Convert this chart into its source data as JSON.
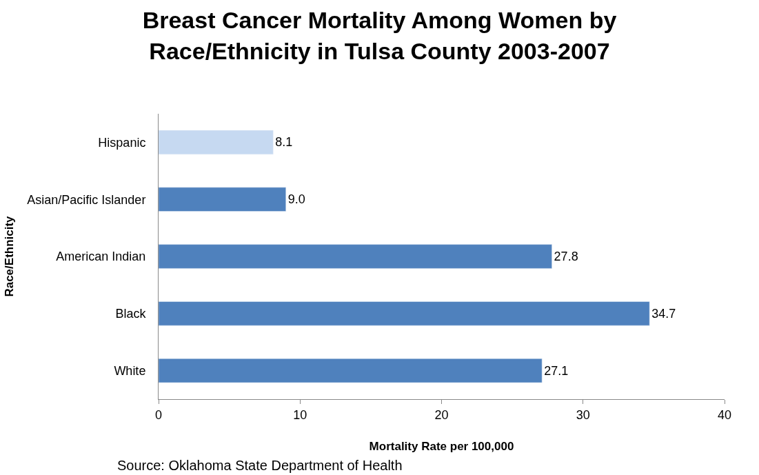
{
  "chart_data": {
    "type": "bar",
    "orientation": "horizontal",
    "title": "Breast Cancer Mortality Among Women by Race/Ethnicity in Tulsa County 2003-2007",
    "xlabel": "Mortality Rate per 100,000",
    "ylabel": "Race/Ethnicity",
    "categories": [
      "Hispanic",
      "Asian/Pacific Islander",
      "American Indian",
      "Black",
      "White"
    ],
    "values": [
      8.1,
      9.0,
      27.8,
      34.7,
      27.1
    ],
    "colors": [
      "#c6d9f1",
      "#4f81bd",
      "#4f81bd",
      "#4f81bd",
      "#4f81bd"
    ],
    "value_labels": [
      "8.1",
      "9.0",
      "27.8",
      "34.7",
      "27.1"
    ],
    "xlim": [
      0,
      40
    ],
    "xticks": [
      0,
      10,
      20,
      30,
      40
    ],
    "annotations": [
      "Source: Oklahoma State Department of Health"
    ]
  }
}
